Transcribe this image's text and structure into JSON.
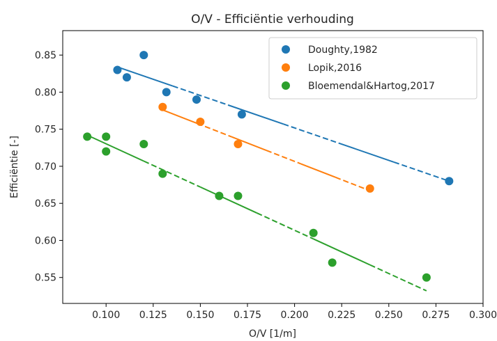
{
  "chart_data": {
    "type": "scatter",
    "title": "O/V - Efficiëntie verhouding",
    "xlabel": "O/V [1/m]",
    "ylabel": "Efficiëntie [-]",
    "xlim": [
      0.077,
      0.3
    ],
    "ylim": [
      0.515,
      0.883
    ],
    "xticks": [
      "0.100",
      "0.125",
      "0.150",
      "0.175",
      "0.200",
      "0.225",
      "0.250",
      "0.275",
      "0.300"
    ],
    "yticks": [
      "0.55",
      "0.60",
      "0.65",
      "0.70",
      "0.75",
      "0.80",
      "0.85"
    ],
    "grid": false,
    "legend_position": "top-right",
    "series": [
      {
        "name": "Doughty,1982",
        "color": "#1f77b4",
        "points": [
          [
            0.106,
            0.83
          ],
          [
            0.111,
            0.82
          ],
          [
            0.12,
            0.85
          ],
          [
            0.132,
            0.8
          ],
          [
            0.148,
            0.79
          ],
          [
            0.172,
            0.77
          ],
          [
            0.282,
            0.68
          ]
        ],
        "trend": [
          [
            0.106,
            0.834
          ],
          [
            0.282,
            0.68
          ]
        ]
      },
      {
        "name": "Lopik,2016",
        "color": "#ff7f0e",
        "points": [
          [
            0.13,
            0.78
          ],
          [
            0.15,
            0.76
          ],
          [
            0.17,
            0.73
          ],
          [
            0.24,
            0.67
          ]
        ],
        "trend": [
          [
            0.13,
            0.776
          ],
          [
            0.24,
            0.667
          ]
        ]
      },
      {
        "name": "Bloemendal&Hartog,2017",
        "color": "#2ca02c",
        "points": [
          [
            0.09,
            0.74
          ],
          [
            0.1,
            0.74
          ],
          [
            0.1,
            0.72
          ],
          [
            0.12,
            0.73
          ],
          [
            0.13,
            0.69
          ],
          [
            0.16,
            0.66
          ],
          [
            0.17,
            0.66
          ],
          [
            0.21,
            0.61
          ],
          [
            0.22,
            0.57
          ],
          [
            0.27,
            0.55
          ]
        ],
        "trend": [
          [
            0.09,
            0.742
          ],
          [
            0.27,
            0.532
          ]
        ]
      }
    ]
  }
}
